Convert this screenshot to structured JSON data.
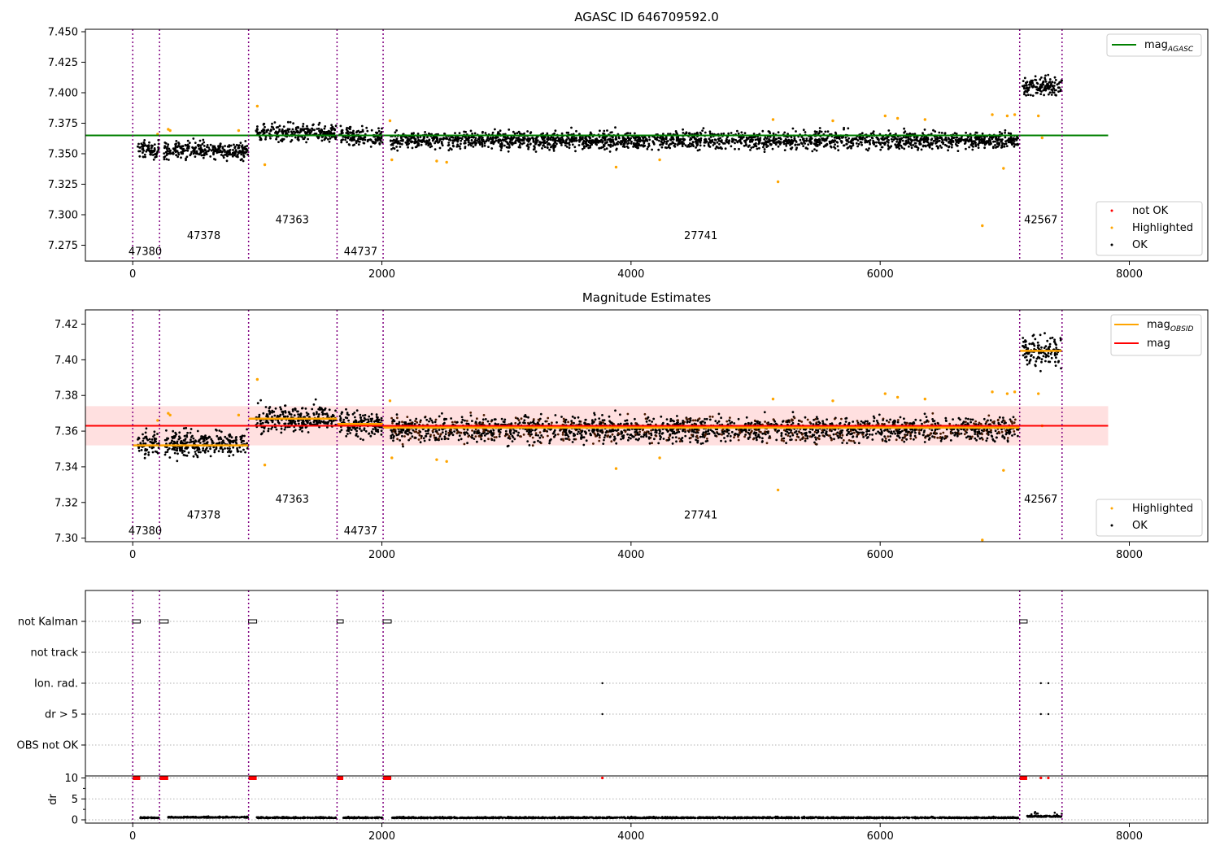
{
  "chart_data": [
    {
      "type": "scatter",
      "title": "AGASC ID 646709592.0",
      "xlim": [
        -380,
        8630
      ],
      "ylim": [
        7.262,
        7.452
      ],
      "xticks": [
        0,
        2000,
        4000,
        6000,
        8000
      ],
      "yticks": [
        7.275,
        7.3,
        7.325,
        7.35,
        7.375,
        7.4,
        7.425,
        7.45
      ],
      "ytick_labels": [
        "7.275",
        "7.300",
        "7.325",
        "7.350",
        "7.375",
        "7.400",
        "7.425",
        "7.450"
      ],
      "obsid_boundaries": [
        0,
        215,
        930,
        1640,
        2010,
        7120,
        7460
      ],
      "obsid_labels": [
        {
          "text": "47380",
          "x": 100,
          "y": 7.267
        },
        {
          "text": "47378",
          "x": 570,
          "y": 7.28
        },
        {
          "text": "47363",
          "x": 1280,
          "y": 7.293
        },
        {
          "text": "44737",
          "x": 1830,
          "y": 7.267
        },
        {
          "text": "27741",
          "x": 4560,
          "y": 7.28
        },
        {
          "text": "42567",
          "x": 7290,
          "y": 7.293
        }
      ],
      "segments": [
        {
          "x": [
            40,
            210
          ],
          "mean": 7.353,
          "spread": 0.005
        },
        {
          "x": [
            250,
            925
          ],
          "mean": 7.353,
          "spread": 0.005
        },
        {
          "x": [
            990,
            1635
          ],
          "mean": 7.367,
          "spread": 0.005
        },
        {
          "x": [
            1660,
            2005
          ],
          "mean": 7.364,
          "spread": 0.005
        },
        {
          "x": [
            2070,
            7110
          ],
          "mean": 7.361,
          "spread": 0.005
        },
        {
          "x": [
            7140,
            7460
          ],
          "mean": 7.405,
          "spread": 0.006
        }
      ],
      "highlighted_points": [
        {
          "x": 200,
          "y": 7.366
        },
        {
          "x": 285,
          "y": 7.37
        },
        {
          "x": 300,
          "y": 7.369
        },
        {
          "x": 850,
          "y": 7.369
        },
        {
          "x": 1000,
          "y": 7.389
        },
        {
          "x": 1060,
          "y": 7.341
        },
        {
          "x": 2065,
          "y": 7.377
        },
        {
          "x": 2080,
          "y": 7.345
        },
        {
          "x": 2440,
          "y": 7.344
        },
        {
          "x": 2520,
          "y": 7.343
        },
        {
          "x": 3880,
          "y": 7.339
        },
        {
          "x": 4230,
          "y": 7.345
        },
        {
          "x": 5140,
          "y": 7.378
        },
        {
          "x": 5180,
          "y": 7.327
        },
        {
          "x": 5620,
          "y": 7.377
        },
        {
          "x": 6040,
          "y": 7.381
        },
        {
          "x": 6140,
          "y": 7.379
        },
        {
          "x": 6360,
          "y": 7.378
        },
        {
          "x": 6820,
          "y": 7.291
        },
        {
          "x": 6900,
          "y": 7.382
        },
        {
          "x": 6990,
          "y": 7.338
        },
        {
          "x": 7020,
          "y": 7.381
        },
        {
          "x": 7080,
          "y": 7.382
        },
        {
          "x": 7270,
          "y": 7.381
        },
        {
          "x": 7300,
          "y": 7.363
        }
      ],
      "hlines": [
        {
          "name": "mag_AGASC",
          "y": 7.365,
          "x": [
            -380,
            7830
          ],
          "color": "#008000"
        }
      ],
      "legend_upper": {
        "position": "upper right",
        "entries": [
          {
            "main": "mag",
            "sub": "AGASC",
            "color": "#008000",
            "kind": "line"
          }
        ]
      },
      "legend_lower": {
        "position": "lower right",
        "entries": [
          {
            "label": "not OK",
            "color": "#ff0000",
            "kind": "point"
          },
          {
            "label": "Highlighted",
            "color": "#ffa500",
            "kind": "point"
          },
          {
            "label": "OK",
            "color": "#000000",
            "kind": "point"
          }
        ]
      }
    },
    {
      "type": "scatter",
      "title": "Magnitude Estimates",
      "xlim": [
        -380,
        8630
      ],
      "ylim": [
        7.298,
        7.428
      ],
      "xticks": [
        0,
        2000,
        4000,
        6000,
        8000
      ],
      "yticks": [
        7.3,
        7.32,
        7.34,
        7.36,
        7.38,
        7.4,
        7.42
      ],
      "ytick_labels": [
        "7.30",
        "7.32",
        "7.34",
        "7.36",
        "7.38",
        "7.40",
        "7.42"
      ],
      "obsid_boundaries": [
        0,
        215,
        930,
        1640,
        2010,
        7120,
        7460
      ],
      "obsid_labels": [
        {
          "text": "47380",
          "x": 100,
          "y": 7.302
        },
        {
          "text": "47378",
          "x": 570,
          "y": 7.311
        },
        {
          "text": "47363",
          "x": 1280,
          "y": 7.32
        },
        {
          "text": "44737",
          "x": 1830,
          "y": 7.302
        },
        {
          "text": "27741",
          "x": 4560,
          "y": 7.311
        },
        {
          "text": "42567",
          "x": 7290,
          "y": 7.32
        }
      ],
      "band": {
        "y": [
          7.352,
          7.374
        ],
        "x": [
          -380,
          7830
        ],
        "color": "#ffcccc"
      },
      "obsid_means": [
        {
          "x": [
            0,
            930
          ],
          "y": 7.352
        },
        {
          "x": [
            930,
            1640
          ],
          "y": 7.367
        },
        {
          "x": [
            1640,
            2010
          ],
          "y": 7.364
        },
        {
          "x": [
            2010,
            7120
          ],
          "y": 7.362
        },
        {
          "x": [
            7120,
            7460
          ],
          "y": 7.405
        }
      ],
      "hlines": [
        {
          "name": "mag",
          "y": 7.363,
          "x": [
            -380,
            7830
          ],
          "color": "#ff0000"
        }
      ],
      "legend_upper": {
        "position": "upper right",
        "entries": [
          {
            "main": "mag",
            "sub": "OBSID",
            "color": "#ffa500",
            "kind": "line"
          },
          {
            "main": "mag",
            "sub": "",
            "color": "#ff0000",
            "kind": "line"
          }
        ]
      },
      "legend_lower": {
        "position": "lower right",
        "entries": [
          {
            "label": "Highlighted",
            "color": "#ffa500",
            "kind": "point"
          },
          {
            "label": "OK",
            "color": "#000000",
            "kind": "point"
          }
        ]
      }
    },
    {
      "type": "scatter",
      "title": "",
      "xlim": [
        -380,
        8630
      ],
      "xticks": [
        0,
        2000,
        4000,
        6000,
        8000
      ],
      "flag_rows": [
        "not Kalman",
        "not track",
        "Ion. rad.",
        "dr > 5",
        "OBS not OK"
      ],
      "flag_points": [
        {
          "row": "not Kalman",
          "x": [
            0,
            60
          ]
        },
        {
          "row": "not Kalman",
          "x": [
            215,
            285
          ]
        },
        {
          "row": "not Kalman",
          "x": [
            930,
            995
          ]
        },
        {
          "row": "not Kalman",
          "x": [
            1640,
            1690
          ]
        },
        {
          "row": "not Kalman",
          "x": [
            2010,
            2075
          ]
        },
        {
          "row": "not Kalman",
          "x": [
            7120,
            7180
          ]
        },
        {
          "row": "Ion. rad.",
          "x": [
            3770,
            3770
          ]
        },
        {
          "row": "Ion. rad.",
          "x": [
            7290,
            7290
          ]
        },
        {
          "row": "Ion. rad.",
          "x": [
            7350,
            7350
          ]
        },
        {
          "row": "dr > 5",
          "x": [
            3770,
            3770
          ]
        },
        {
          "row": "dr > 5",
          "x": [
            7290,
            7290
          ]
        },
        {
          "row": "dr > 5",
          "x": [
            7350,
            7350
          ]
        }
      ],
      "dr_ylabel": "dr",
      "dr_yticks": [
        0,
        5,
        10
      ],
      "dr_clipped": [
        {
          "x": [
            0,
            60
          ]
        },
        {
          "x": [
            215,
            285
          ]
        },
        {
          "x": [
            930,
            995
          ]
        },
        {
          "x": [
            1640,
            1690
          ]
        },
        {
          "x": [
            2010,
            2075
          ]
        },
        {
          "x": [
            3770,
            3770
          ]
        },
        {
          "x": [
            7120,
            7180
          ]
        },
        {
          "x": [
            7290,
            7290
          ]
        },
        {
          "x": [
            7350,
            7350
          ]
        }
      ],
      "dr_segments": [
        {
          "x": [
            60,
            210
          ],
          "level": 0.4
        },
        {
          "x": [
            285,
            925
          ],
          "level": 0.5
        },
        {
          "x": [
            995,
            1635
          ],
          "level": 0.4
        },
        {
          "x": [
            1690,
            2005
          ],
          "level": 0.4
        },
        {
          "x": [
            2075,
            7110
          ],
          "level": 0.4
        },
        {
          "x": [
            7180,
            7460
          ],
          "level": 0.7
        }
      ]
    }
  ]
}
